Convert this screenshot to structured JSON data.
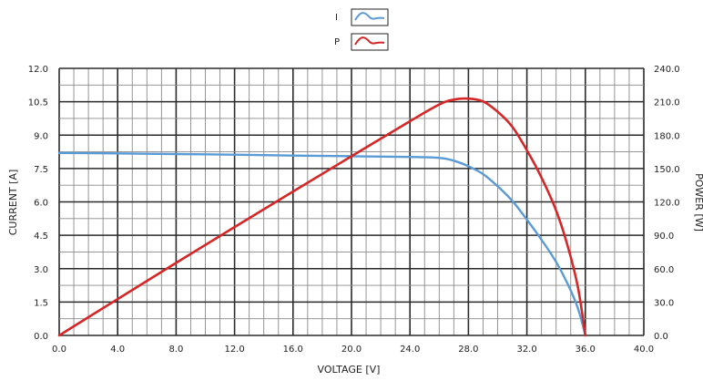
{
  "chart_data": {
    "type": "line",
    "title": "",
    "xlabel": "VOLTAGE [V]",
    "ylabel": "CURRENT [A]",
    "y2label": "POWER [W]",
    "xlim": [
      0,
      40
    ],
    "ylim": [
      0,
      12
    ],
    "y2lim": [
      0,
      240
    ],
    "grid": true,
    "legend_position": "top-center",
    "x_ticks": [
      "0.0",
      "4.0",
      "8.0",
      "12.0",
      "16.0",
      "20.0",
      "24.0",
      "28.0",
      "32.0",
      "36.0",
      "40.0"
    ],
    "y_ticks": [
      "0.0",
      "1.5",
      "3.0",
      "4.5",
      "6.0",
      "7.5",
      "9.0",
      "10.5",
      "12.0"
    ],
    "y2_ticks": [
      "0.0",
      "30.0",
      "60.0",
      "90.0",
      "120.0",
      "150.0",
      "180.0",
      "210.0",
      "240.0"
    ],
    "series": [
      {
        "name": "I",
        "axis": "left",
        "color": "#5b9bd5",
        "x": [
          0,
          4,
          8,
          12,
          16,
          20,
          24,
          26,
          27,
          28,
          29,
          30,
          31,
          32,
          33,
          34,
          34.8,
          35.5,
          36
        ],
        "y": [
          8.2,
          8.18,
          8.15,
          8.12,
          8.08,
          8.05,
          8.02,
          7.98,
          7.85,
          7.6,
          7.25,
          6.7,
          6.05,
          5.2,
          4.3,
          3.3,
          2.3,
          1.2,
          0.0
        ]
      },
      {
        "name": "P",
        "axis": "right",
        "color": "#d62728",
        "x": [
          0,
          4,
          8,
          12,
          16,
          20,
          24,
          26,
          27,
          28,
          29,
          30,
          31,
          32,
          33,
          34,
          34.8,
          35.5,
          36
        ],
        "y": [
          0,
          32.7,
          65.2,
          97.4,
          129.3,
          161,
          192.5,
          207.5,
          211.9,
          212.8,
          210.3,
          201,
          187.6,
          166.4,
          141.9,
          112.2,
          80,
          42.6,
          0
        ]
      }
    ]
  }
}
